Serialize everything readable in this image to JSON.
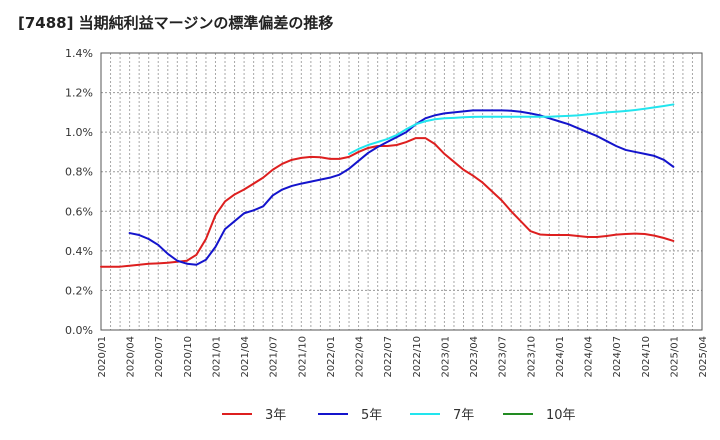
{
  "title": "[7488]  当期純利益マージンの標準偏差の推移",
  "chart_data": {
    "type": "line",
    "title": "[7488]  当期純利益マージンの標準偏差の推移",
    "xlabel": "",
    "ylabel": "",
    "ylim": [
      0,
      1.4
    ],
    "y_ticks": [
      "0.0%",
      "0.2%",
      "0.4%",
      "0.6%",
      "0.8%",
      "1.0%",
      "1.2%",
      "1.4%"
    ],
    "y_tick_values": [
      0,
      0.2,
      0.4,
      0.6,
      0.8,
      1.0,
      1.2,
      1.4
    ],
    "x_ticks": [
      "2020/01",
      "2020/04",
      "2020/07",
      "2020/10",
      "2021/01",
      "2021/04",
      "2021/07",
      "2021/10",
      "2022/01",
      "2022/04",
      "2022/07",
      "2022/10",
      "2023/01",
      "2023/04",
      "2023/07",
      "2023/10",
      "2024/01",
      "2024/04",
      "2024/07",
      "2024/10",
      "2025/01",
      "2025/04"
    ],
    "grid": true,
    "legend_position": "bottom",
    "colors": {
      "s3": "#dd1f1f",
      "s5": "#1414cc",
      "s7": "#22e5ee",
      "s10": "#228b22"
    },
    "series": [
      {
        "name": "3年",
        "color": "#dd1f1f",
        "points": [
          [
            "2020/01",
            0.32
          ],
          [
            "2020/02",
            0.32
          ],
          [
            "2020/03",
            0.32
          ],
          [
            "2020/04",
            0.325
          ],
          [
            "2020/05",
            0.33
          ],
          [
            "2020/06",
            0.335
          ],
          [
            "2020/07",
            0.337
          ],
          [
            "2020/08",
            0.34
          ],
          [
            "2020/09",
            0.345
          ],
          [
            "2020/10",
            0.35
          ],
          [
            "2020/11",
            0.38
          ],
          [
            "2020/12",
            0.46
          ],
          [
            "2021/01",
            0.58
          ],
          [
            "2021/02",
            0.65
          ],
          [
            "2021/03",
            0.685
          ],
          [
            "2021/04",
            0.71
          ],
          [
            "2021/05",
            0.74
          ],
          [
            "2021/06",
            0.77
          ],
          [
            "2021/07",
            0.81
          ],
          [
            "2021/08",
            0.84
          ],
          [
            "2021/09",
            0.86
          ],
          [
            "2021/10",
            0.87
          ],
          [
            "2021/11",
            0.875
          ],
          [
            "2021/12",
            0.873
          ],
          [
            "2022/01",
            0.865
          ],
          [
            "2022/02",
            0.865
          ],
          [
            "2022/03",
            0.875
          ],
          [
            "2022/04",
            0.9
          ],
          [
            "2022/05",
            0.92
          ],
          [
            "2022/06",
            0.93
          ],
          [
            "2022/07",
            0.93
          ],
          [
            "2022/08",
            0.935
          ],
          [
            "2022/09",
            0.95
          ],
          [
            "2022/10",
            0.97
          ],
          [
            "2022/11",
            0.97
          ],
          [
            "2022/12",
            0.94
          ],
          [
            "2023/01",
            0.89
          ],
          [
            "2023/02",
            0.85
          ],
          [
            "2023/03",
            0.81
          ],
          [
            "2023/04",
            0.78
          ],
          [
            "2023/05",
            0.745
          ],
          [
            "2023/06",
            0.7
          ],
          [
            "2023/07",
            0.655
          ],
          [
            "2023/08",
            0.6
          ],
          [
            "2023/09",
            0.55
          ],
          [
            "2023/10",
            0.5
          ],
          [
            "2023/11",
            0.483
          ],
          [
            "2023/12",
            0.48
          ],
          [
            "2024/01",
            0.48
          ],
          [
            "2024/02",
            0.48
          ],
          [
            "2024/03",
            0.475
          ],
          [
            "2024/04",
            0.47
          ],
          [
            "2024/05",
            0.47
          ],
          [
            "2024/06",
            0.475
          ],
          [
            "2024/07",
            0.482
          ],
          [
            "2024/08",
            0.485
          ],
          [
            "2024/09",
            0.487
          ],
          [
            "2024/10",
            0.485
          ],
          [
            "2024/11",
            0.477
          ],
          [
            "2024/12",
            0.465
          ],
          [
            "2025/01",
            0.45
          ]
        ]
      },
      {
        "name": "5年",
        "color": "#1414cc",
        "points": [
          [
            "2020/04",
            0.49
          ],
          [
            "2020/05",
            0.48
          ],
          [
            "2020/06",
            0.46
          ],
          [
            "2020/07",
            0.43
          ],
          [
            "2020/08",
            0.385
          ],
          [
            "2020/09",
            0.35
          ],
          [
            "2020/10",
            0.335
          ],
          [
            "2020/11",
            0.33
          ],
          [
            "2020/12",
            0.355
          ],
          [
            "2021/01",
            0.42
          ],
          [
            "2021/02",
            0.51
          ],
          [
            "2021/03",
            0.55
          ],
          [
            "2021/04",
            0.59
          ],
          [
            "2021/05",
            0.605
          ],
          [
            "2021/06",
            0.625
          ],
          [
            "2021/07",
            0.68
          ],
          [
            "2021/08",
            0.71
          ],
          [
            "2021/09",
            0.728
          ],
          [
            "2021/10",
            0.74
          ],
          [
            "2021/11",
            0.75
          ],
          [
            "2021/12",
            0.76
          ],
          [
            "2022/01",
            0.77
          ],
          [
            "2022/02",
            0.785
          ],
          [
            "2022/03",
            0.815
          ],
          [
            "2022/04",
            0.855
          ],
          [
            "2022/05",
            0.895
          ],
          [
            "2022/06",
            0.925
          ],
          [
            "2022/07",
            0.95
          ],
          [
            "2022/08",
            0.975
          ],
          [
            "2022/09",
            1.0
          ],
          [
            "2022/10",
            1.04
          ],
          [
            "2022/11",
            1.07
          ],
          [
            "2022/12",
            1.085
          ],
          [
            "2023/01",
            1.095
          ],
          [
            "2023/02",
            1.1
          ],
          [
            "2023/03",
            1.105
          ],
          [
            "2023/04",
            1.11
          ],
          [
            "2023/05",
            1.11
          ],
          [
            "2023/06",
            1.11
          ],
          [
            "2023/07",
            1.11
          ],
          [
            "2023/08",
            1.108
          ],
          [
            "2023/09",
            1.103
          ],
          [
            "2023/10",
            1.095
          ],
          [
            "2023/11",
            1.085
          ],
          [
            "2023/12",
            1.07
          ],
          [
            "2024/01",
            1.055
          ],
          [
            "2024/02",
            1.04
          ],
          [
            "2024/03",
            1.02
          ],
          [
            "2024/04",
            1.0
          ],
          [
            "2024/05",
            0.98
          ],
          [
            "2024/06",
            0.955
          ],
          [
            "2024/07",
            0.93
          ],
          [
            "2024/08",
            0.91
          ],
          [
            "2024/09",
            0.9
          ],
          [
            "2024/10",
            0.89
          ],
          [
            "2024/11",
            0.88
          ],
          [
            "2024/12",
            0.86
          ],
          [
            "2025/01",
            0.825
          ]
        ]
      },
      {
        "name": "7年",
        "color": "#22e5ee",
        "points": [
          [
            "2022/03",
            0.89
          ],
          [
            "2022/04",
            0.915
          ],
          [
            "2022/05",
            0.935
          ],
          [
            "2022/06",
            0.95
          ],
          [
            "2022/07",
            0.965
          ],
          [
            "2022/08",
            0.985
          ],
          [
            "2022/09",
            1.015
          ],
          [
            "2022/10",
            1.04
          ],
          [
            "2022/11",
            1.055
          ],
          [
            "2022/12",
            1.065
          ],
          [
            "2023/01",
            1.07
          ],
          [
            "2023/02",
            1.072
          ],
          [
            "2023/03",
            1.075
          ],
          [
            "2023/04",
            1.077
          ],
          [
            "2023/05",
            1.078
          ],
          [
            "2023/06",
            1.078
          ],
          [
            "2023/07",
            1.078
          ],
          [
            "2023/08",
            1.078
          ],
          [
            "2023/09",
            1.078
          ],
          [
            "2023/10",
            1.078
          ],
          [
            "2023/11",
            1.078
          ],
          [
            "2023/12",
            1.078
          ],
          [
            "2024/01",
            1.08
          ],
          [
            "2024/02",
            1.082
          ],
          [
            "2024/03",
            1.085
          ],
          [
            "2024/04",
            1.09
          ],
          [
            "2024/05",
            1.095
          ],
          [
            "2024/06",
            1.1
          ],
          [
            "2024/07",
            1.103
          ],
          [
            "2024/08",
            1.107
          ],
          [
            "2024/09",
            1.112
          ],
          [
            "2024/10",
            1.118
          ],
          [
            "2024/11",
            1.125
          ],
          [
            "2024/12",
            1.132
          ],
          [
            "2025/01",
            1.14
          ]
        ]
      },
      {
        "name": "10年",
        "color": "#228b22",
        "points": []
      }
    ]
  }
}
